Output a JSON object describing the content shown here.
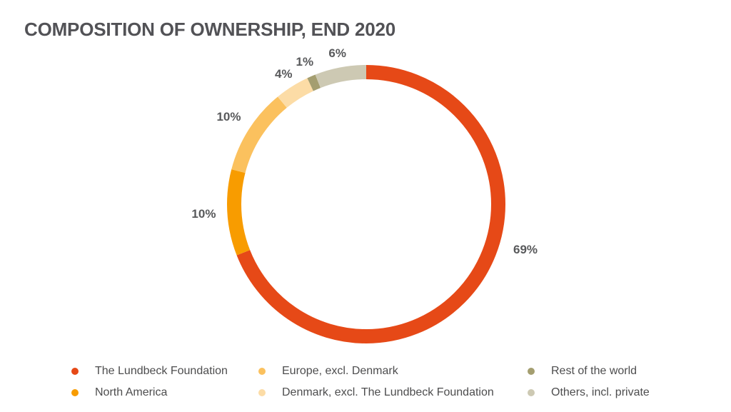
{
  "chart_data": {
    "type": "pie",
    "title": "COMPOSITION OF OWNERSHIP, END 2020",
    "unit": "%",
    "slices": [
      {
        "name": "The Lundbeck Foundation",
        "value": 69,
        "label": "69%",
        "color": "#E64917",
        "label_angle_deg": 106,
        "label_radius": 232
      },
      {
        "name": "North America",
        "value": 10,
        "label": "10%",
        "color": "#F89C00",
        "label_angle_deg": 266.4,
        "label_radius": 228
      },
      {
        "name": "Europe, excl. Denmark",
        "value": 10,
        "label": "10%",
        "color": "#FBC15E",
        "label_angle_deg": 302.4,
        "label_radius": 228
      },
      {
        "name": "Denmark, excl. The Lundbeck Foundation",
        "value": 4,
        "label": "4%",
        "color": "#FCDCA6",
        "label_angle_deg": 327.6,
        "label_radius": 216
      },
      {
        "name": "Rest of the world",
        "value": 1,
        "label": "1%",
        "color": "#A49E70",
        "label_angle_deg": 336.6,
        "label_radius": 217
      },
      {
        "name": "Others, incl. private",
        "value": 6,
        "label": "6%",
        "color": "#CDC9B3",
        "label_angle_deg": 349.2,
        "label_radius": 215
      }
    ],
    "layout": {
      "donut": true,
      "start_angle_deg": 0,
      "clockwise": true,
      "center": [
        513,
        286
      ],
      "outer_radius": 195,
      "ring_thickness": 20,
      "legend_position": "bottom",
      "grid": false
    }
  }
}
